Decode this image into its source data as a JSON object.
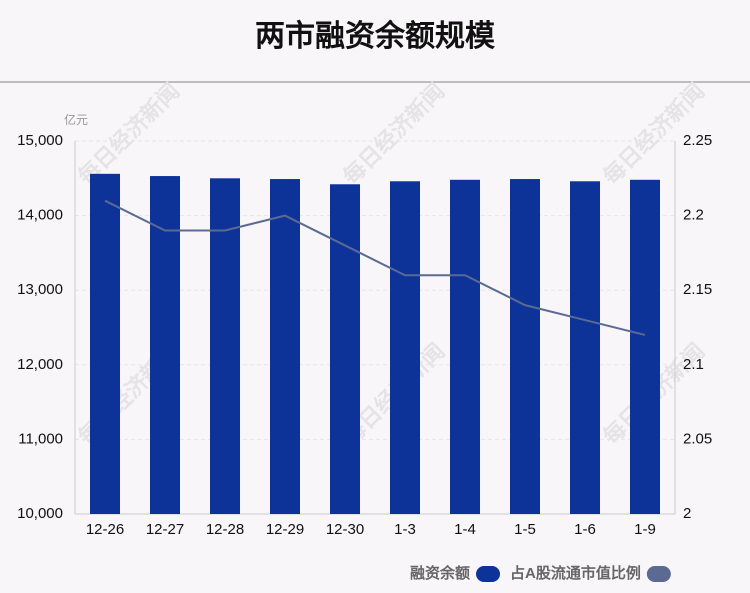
{
  "chart_data": {
    "type": "bar-line",
    "title": "两市融资余额规模",
    "y_unit": "亿元",
    "watermark": "每日经济新闻",
    "categories": [
      "12-26",
      "12-27",
      "12-28",
      "12-29",
      "12-30",
      "1-3",
      "1-4",
      "1-5",
      "1-6",
      "1-9"
    ],
    "series": [
      {
        "name": "融资余额",
        "color": "#0d3399",
        "type": "bar",
        "axis": "y",
        "values": [
          14560,
          14530,
          14500,
          14490,
          14420,
          14460,
          14480,
          14490,
          14460,
          14480
        ]
      },
      {
        "name": "占A股流通市值比例",
        "color": "#5b6a93",
        "type": "line",
        "axis": "y2",
        "values": [
          2.21,
          2.19,
          2.19,
          2.2,
          2.18,
          2.16,
          2.16,
          2.14,
          2.13,
          2.12
        ]
      }
    ],
    "ylim": [
      10000,
      15000
    ],
    "yticks": [
      {
        "value": 10000,
        "label": "10,000"
      },
      {
        "value": 11000,
        "label": "11,000"
      },
      {
        "value": 12000,
        "label": "12,000"
      },
      {
        "value": 13000,
        "label": "13,000"
      },
      {
        "value": 14000,
        "label": "14,000"
      },
      {
        "value": 15000,
        "label": "15,000"
      }
    ],
    "y2lim": [
      2,
      2.25
    ],
    "y2ticks": [
      2,
      2.05,
      2.1,
      2.15,
      2.2,
      2.25
    ],
    "grid": true
  }
}
